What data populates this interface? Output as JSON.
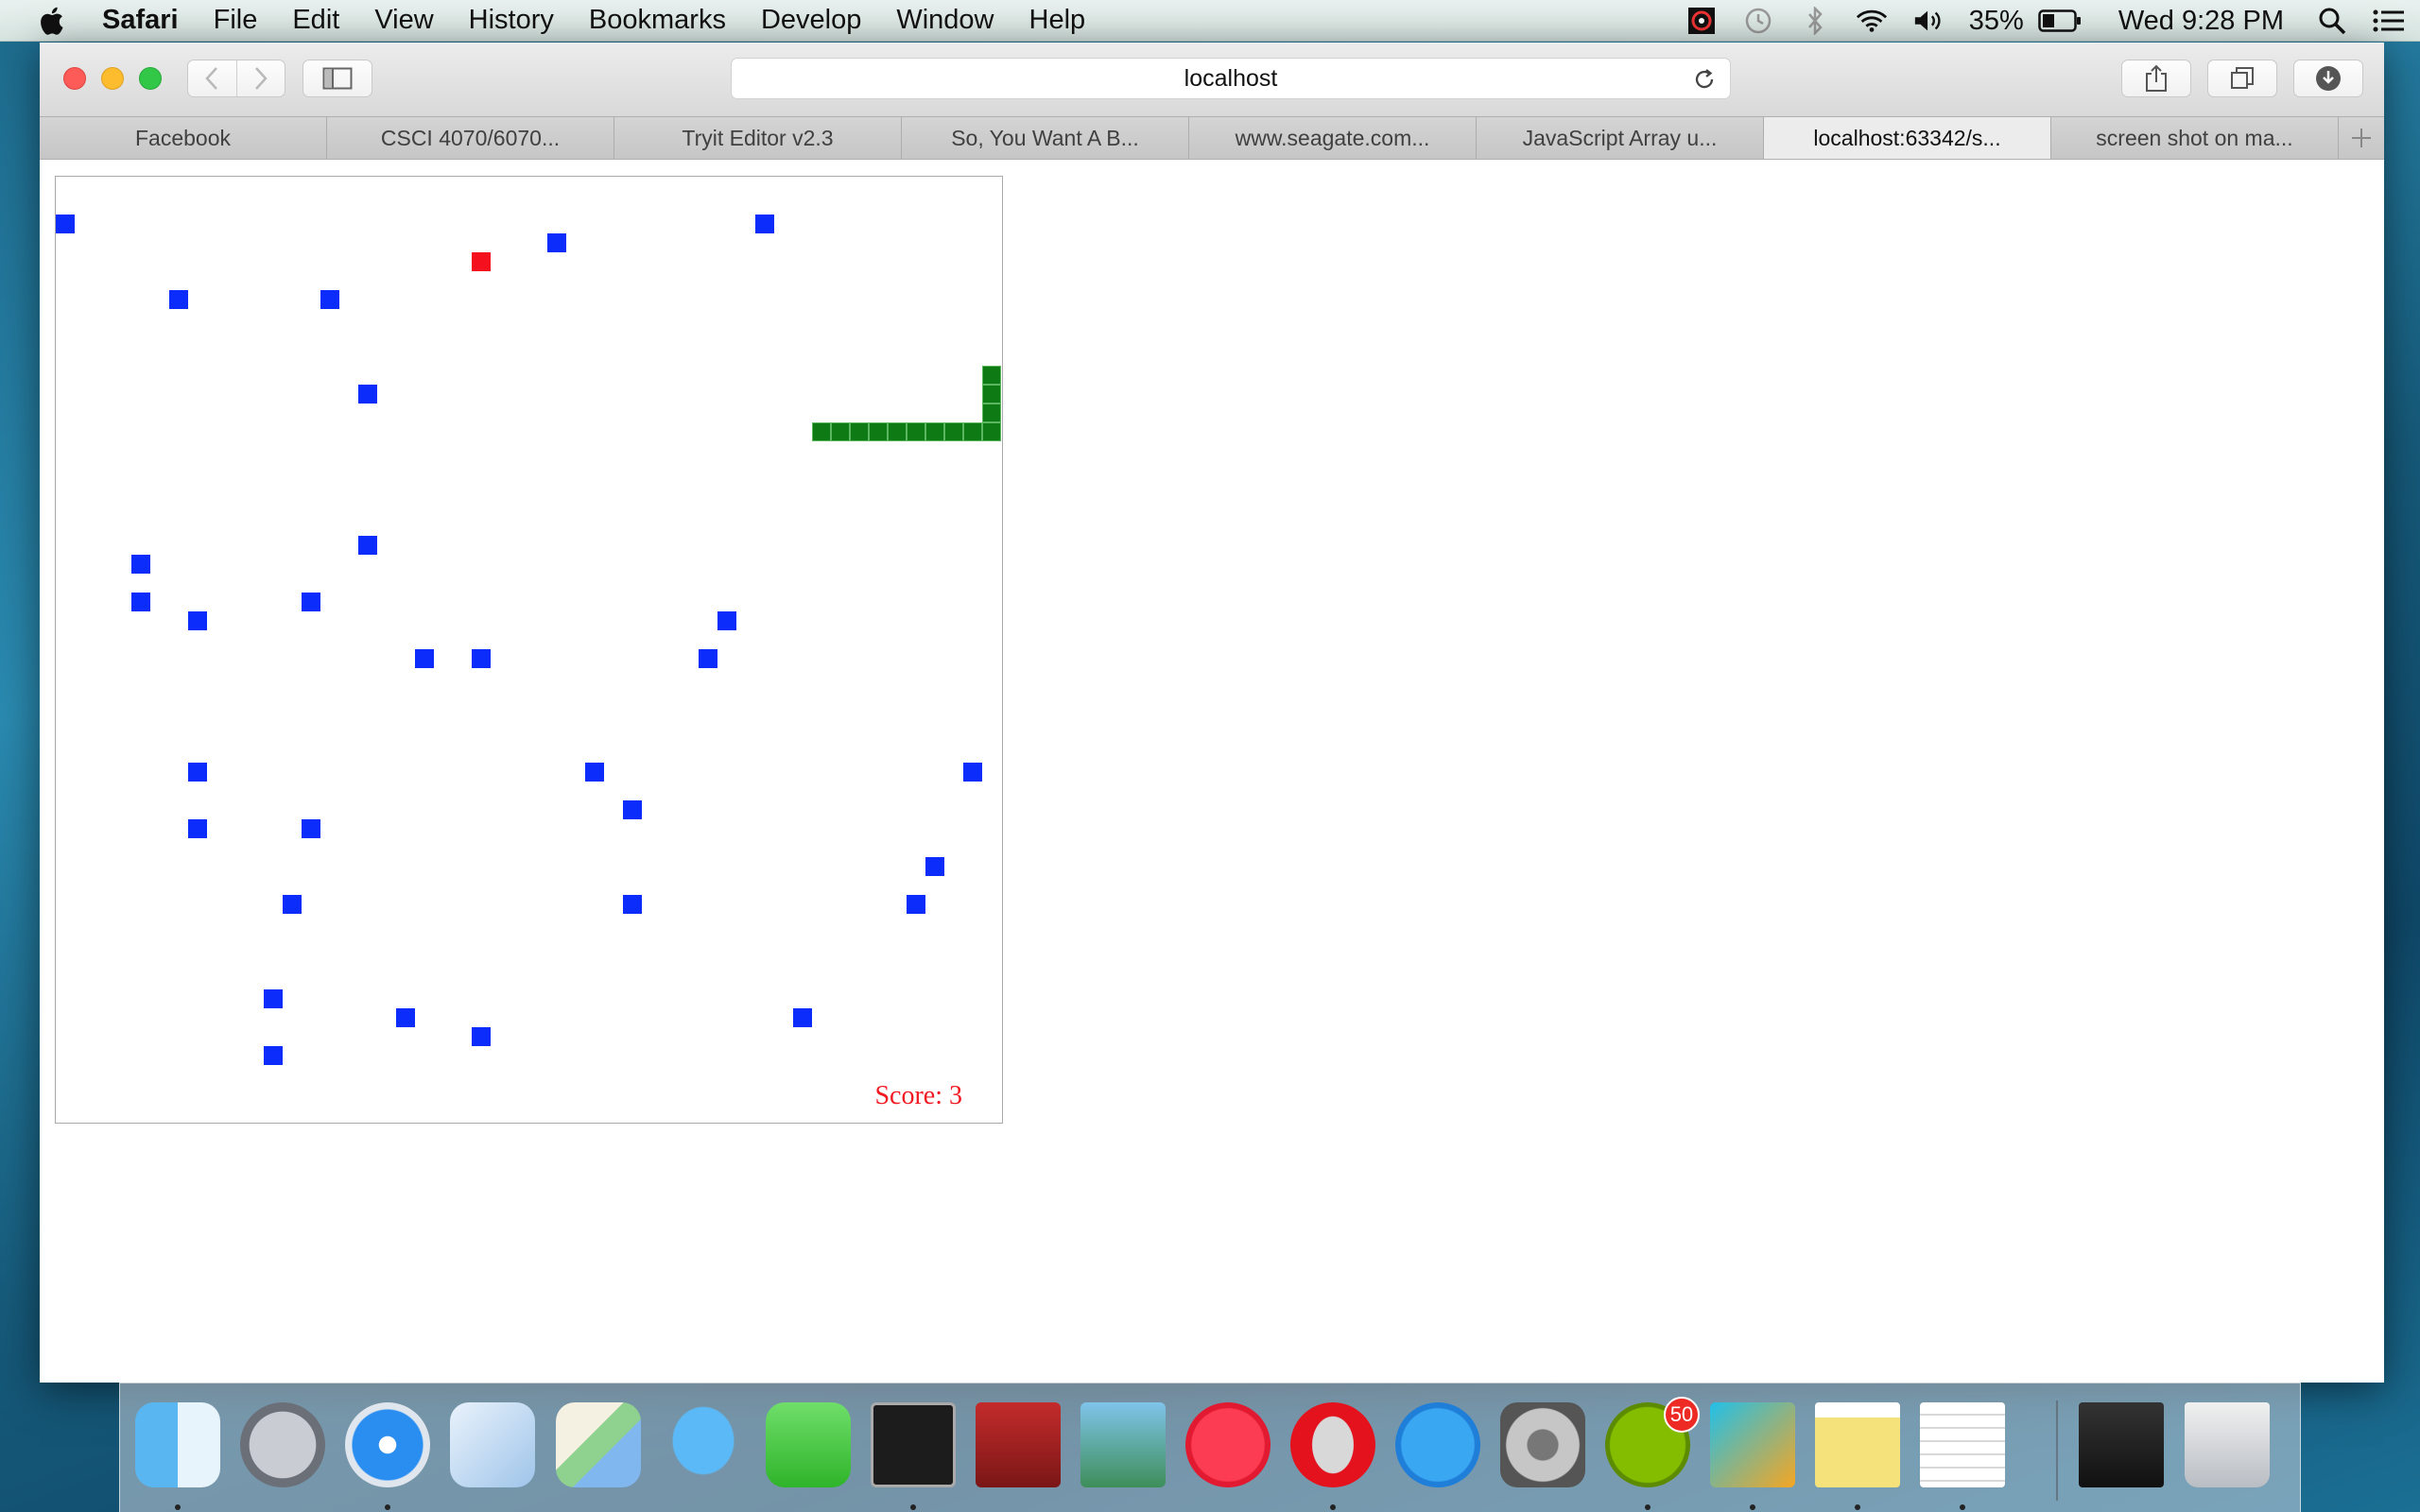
{
  "menubar": {
    "app_name": "Safari",
    "items": [
      "File",
      "Edit",
      "View",
      "History",
      "Bookmarks",
      "Develop",
      "Window",
      "Help"
    ],
    "battery": "35%",
    "clock": "Wed 9:28 PM"
  },
  "browser": {
    "address": "localhost",
    "tabs": [
      {
        "label": "Facebook",
        "active": false
      },
      {
        "label": "CSCI 4070/6070...",
        "active": false
      },
      {
        "label": "Tryit Editor v2.3",
        "active": false
      },
      {
        "label": "So, You Want A B...",
        "active": false
      },
      {
        "label": "www.seagate.com...",
        "active": false
      },
      {
        "label": "JavaScript Array u...",
        "active": false
      },
      {
        "label": "localhost:63342/s...",
        "active": true
      },
      {
        "label": "screen shot on ma...",
        "active": false
      }
    ]
  },
  "game": {
    "grid_cols": 50,
    "grid_rows": 50,
    "score_text": "Score: 3",
    "food": [
      22,
      4
    ],
    "snake": [
      [
        40,
        13
      ],
      [
        41,
        13
      ],
      [
        42,
        13
      ],
      [
        43,
        13
      ],
      [
        44,
        13
      ],
      [
        45,
        13
      ],
      [
        46,
        13
      ],
      [
        47,
        13
      ],
      [
        48,
        13
      ],
      [
        49,
        13
      ],
      [
        49,
        12
      ],
      [
        49,
        11
      ],
      [
        49,
        10
      ]
    ],
    "obstacles": [
      [
        0,
        2
      ],
      [
        26,
        3
      ],
      [
        37,
        2
      ],
      [
        6,
        6
      ],
      [
        14,
        6
      ],
      [
        16,
        11
      ],
      [
        16,
        19
      ],
      [
        4,
        20
      ],
      [
        4,
        22
      ],
      [
        13,
        22
      ],
      [
        7,
        23
      ],
      [
        35,
        23
      ],
      [
        19,
        25
      ],
      [
        22,
        25
      ],
      [
        34,
        25
      ],
      [
        7,
        31
      ],
      [
        28,
        31
      ],
      [
        48,
        31
      ],
      [
        30,
        33
      ],
      [
        7,
        34
      ],
      [
        13,
        34
      ],
      [
        46,
        36
      ],
      [
        12,
        38
      ],
      [
        30,
        38
      ],
      [
        45,
        38
      ],
      [
        11,
        43
      ],
      [
        18,
        44
      ],
      [
        39,
        44
      ],
      [
        22,
        45
      ],
      [
        11,
        46
      ]
    ],
    "colors": {
      "obstacle": "#0b2cfb",
      "food": "#f5101e",
      "snake": "#0e7a14",
      "score": "#f11a22"
    }
  },
  "dock": {
    "apps": [
      {
        "name": "Finder",
        "icon": "finder-icon",
        "running": true
      },
      {
        "name": "Launchpad",
        "icon": "launchpad-icon",
        "running": false
      },
      {
        "name": "Safari",
        "icon": "safari-icon",
        "running": true
      },
      {
        "name": "Mail",
        "icon": "mail-icon",
        "running": false
      },
      {
        "name": "Maps",
        "icon": "maps-icon",
        "running": false
      },
      {
        "name": "Messages",
        "icon": "messages-icon",
        "running": false
      },
      {
        "name": "FaceTime",
        "icon": "facetime-icon",
        "running": false
      },
      {
        "name": "Terminal",
        "icon": "terminal-icon",
        "running": true
      },
      {
        "name": "Photo Booth",
        "icon": "photo-booth-icon",
        "running": false
      },
      {
        "name": "iPhoto",
        "icon": "iphoto-icon",
        "running": false
      },
      {
        "name": "iTunes",
        "icon": "itunes-icon",
        "running": false
      },
      {
        "name": "Opera",
        "icon": "opera-icon",
        "running": true
      },
      {
        "name": "App Store",
        "icon": "app-store-icon",
        "running": false
      },
      {
        "name": "System Preferences",
        "icon": "system-preferences-icon",
        "running": false
      },
      {
        "name": "Spotify",
        "icon": "spotify-icon",
        "running": true,
        "badge": "50"
      },
      {
        "name": "WebStorm",
        "icon": "webstorm-icon",
        "running": true
      },
      {
        "name": "Notes",
        "icon": "notes-icon",
        "running": true
      },
      {
        "name": "TextEdit",
        "icon": "textedit-icon",
        "running": true
      },
      {
        "name": "Spotify window",
        "icon": "minimized-window-icon",
        "running": false
      },
      {
        "name": "Trash",
        "icon": "trash-icon",
        "running": false
      }
    ]
  }
}
